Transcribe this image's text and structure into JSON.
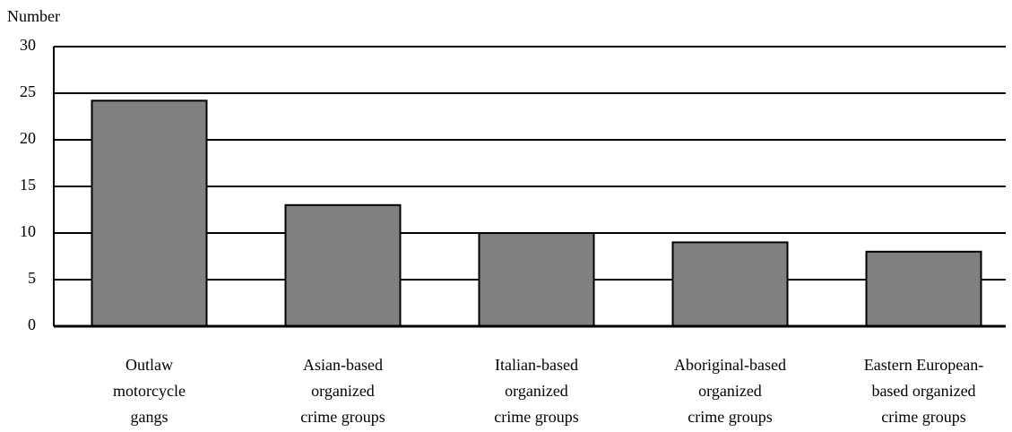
{
  "chart_data": {
    "type": "bar",
    "ylabel": "Number",
    "categories": [
      [
        "Outlaw",
        "motorcycle",
        "gangs"
      ],
      [
        "Asian-based",
        "organized",
        "crime groups"
      ],
      [
        "Italian-based",
        "organized",
        "crime groups"
      ],
      [
        "Aboriginal-based",
        "organized",
        "crime groups"
      ],
      [
        "Eastern European-",
        "based organized",
        "crime groups"
      ]
    ],
    "values": [
      24.2,
      13,
      10,
      9,
      8
    ],
    "color": "#808080",
    "ylim": [
      0,
      30
    ],
    "yticks": [
      0,
      5,
      10,
      15,
      20,
      25,
      30
    ],
    "grid": true
  }
}
